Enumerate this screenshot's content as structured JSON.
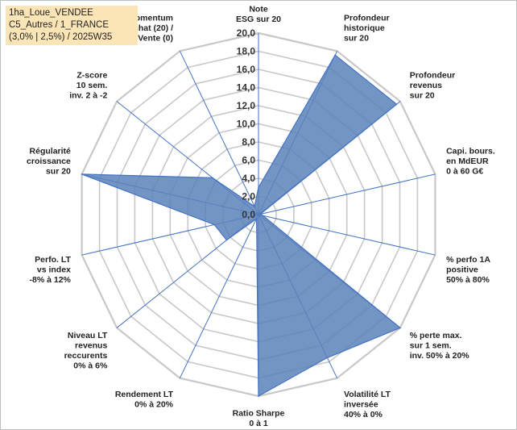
{
  "info": {
    "line1": "1ha_Loue_VENDEE",
    "line2": "C5_Autres / 1_FRANCE",
    "line3": "(3,0% | 2,5%) / 2025W35"
  },
  "chart_data": {
    "type": "radar",
    "rmin": 0,
    "rmax": 20,
    "ticks": [
      "0,0",
      "2,0",
      "4,0",
      "6,0",
      "8,0",
      "10,0",
      "12,0",
      "14,0",
      "16,0",
      "18,0",
      "20,0"
    ],
    "axes": [
      [
        "Note",
        "ESG sur 20"
      ],
      [
        "Profondeur",
        "historique",
        "sur 20"
      ],
      [
        "Profondeur",
        "revenus",
        "sur 20"
      ],
      [
        "Capi. bours.",
        "en MdEUR",
        "0 à 60 G€"
      ],
      [
        "% perfo 1A",
        "positive",
        "50% à 80%"
      ],
      [
        "% perte max.",
        "sur 1 sem.",
        "inv. 50% à 20%"
      ],
      [
        "Volatilité LT",
        "inversée",
        "40% à 0%"
      ],
      [
        "Ratio Sharpe",
        "0 à 1"
      ],
      [
        "Rendement LT",
        "0% à 20%"
      ],
      [
        "Niveau LT",
        "revenus",
        "reccurents",
        "0% à 6%"
      ],
      [
        "Perfo. LT",
        "vs index",
        "-8% à 12%"
      ],
      [
        "Régularité",
        "croissance",
        "sur 20"
      ],
      [
        "Z-score",
        "10 sem.",
        "inv. 2 à -2"
      ],
      [
        "Momentum",
        "Achat (20) /",
        "Vente (0)"
      ]
    ],
    "series": [
      {
        "values": [
          3.0,
          19.5,
          19.5,
          0.2,
          0.5,
          20,
          17.5,
          20,
          0.5,
          4.5,
          5.0,
          20,
          6.5,
          1.0
        ],
        "color": "#5b83ba"
      }
    ],
    "grid": true
  }
}
